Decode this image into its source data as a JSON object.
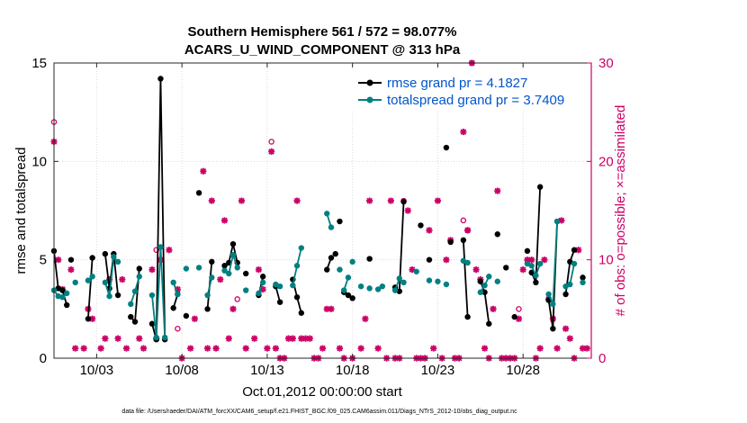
{
  "chart_data": {
    "type": "line",
    "title": "Southern Hemisphere 561 / 572 = 98.077%",
    "subtitle": "ACARS_U_WIND_COMPONENT @ 313 hPa",
    "xlabel": "Oct.01,2012 00:00:00 start",
    "ylabel_left": "rmse and totalspread",
    "ylabel_right": "# of obs: o=possible; ×=assimilated",
    "footer": "data file: /Users/raeder/DAI/ATM_forcXX/CAM6_setup/f.e21.FHIST_BGC.f09_025.CAM6assim.011/Diags_NTrS_2012-10/obs_diag_output.nc",
    "xlim": [
      0.5,
      32
    ],
    "ylim_left": [
      0,
      15
    ],
    "ylim_right": [
      0,
      30
    ],
    "x_ticks": [
      3,
      8,
      13,
      18,
      23,
      28
    ],
    "x_tick_labels": [
      "10/03",
      "10/08",
      "10/13",
      "10/18",
      "10/23",
      "10/28"
    ],
    "y_left_ticks": [
      0,
      5,
      10,
      15
    ],
    "y_right_ticks": [
      0,
      10,
      20,
      30
    ],
    "grid": true,
    "legend_position": "top-right",
    "colors": {
      "rmse": "#000000",
      "spread": "#008080",
      "obs": "#cc0066"
    },
    "series": [
      {
        "name": "rmse grand pr = 4.1827",
        "axis": "left",
        "segments": [
          [
            [
              0.5,
              5.45
            ],
            [
              0.75,
              3.55
            ],
            [
              1.0,
              3.45
            ],
            [
              1.25,
              2.7
            ]
          ],
          [
            [
              2.5,
              2.0
            ],
            [
              2.75,
              5.1
            ]
          ],
          [
            [
              3.5,
              5.3
            ],
            [
              3.75,
              3.55
            ],
            [
              4.0,
              5.3
            ],
            [
              4.25,
              3.2
            ]
          ],
          [
            [
              5.0,
              2.1
            ],
            [
              5.25,
              1.85
            ],
            [
              5.5,
              4.55
            ]
          ],
          [
            [
              6.25,
              1.75
            ],
            [
              6.5,
              0.95
            ],
            [
              6.75,
              14.2
            ],
            [
              7.0,
              0.95
            ]
          ],
          [
            [
              7.5,
              2.55
            ],
            [
              7.75,
              3.25
            ]
          ],
          [
            [
              9.5,
              2.5
            ],
            [
              9.75,
              4.9
            ]
          ],
          [
            [
              10.5,
              4.7
            ],
            [
              10.75,
              4.85
            ],
            [
              11.0,
              5.8
            ],
            [
              11.25,
              4.85
            ]
          ],
          [
            [
              12.5,
              3.2
            ],
            [
              12.75,
              4.15
            ]
          ],
          [
            [
              13.5,
              3.65
            ],
            [
              13.75,
              2.85
            ]
          ],
          [
            [
              14.5,
              4.0
            ],
            [
              14.75,
              3.1
            ],
            [
              15.0,
              2.3
            ]
          ],
          [
            [
              16.5,
              4.5
            ],
            [
              16.75,
              5.1
            ]
          ],
          [
            [
              17.5,
              3.35
            ],
            [
              17.75,
              3.2
            ]
          ],
          [
            [
              20.5,
              3.6
            ],
            [
              20.75,
              3.4
            ],
            [
              21.0,
              7.95
            ]
          ],
          [
            [
              24.5,
              6.0
            ],
            [
              24.75,
              2.1
            ]
          ],
          [
            [
              25.5,
              3.9
            ],
            [
              25.75,
              3.35
            ],
            [
              26.0,
              1.75
            ]
          ],
          [
            [
              28.5,
              4.35
            ],
            [
              28.75,
              3.85
            ],
            [
              29.0,
              8.7
            ]
          ],
          [
            [
              29.5,
              2.95
            ],
            [
              29.75,
              1.5
            ],
            [
              30.0,
              6.95
            ]
          ],
          [
            [
              30.5,
              3.25
            ],
            [
              30.75,
              4.9
            ],
            [
              31.0,
              5.5
            ]
          ],
          [
            [
              31.5,
              4.1
            ]
          ]
        ],
        "isolated": [
          [
            1.5,
            5.0
          ],
          [
            8.25,
            2.15
          ],
          [
            9.0,
            8.4
          ],
          [
            11.75,
            4.3
          ],
          [
            17.0,
            5.3
          ],
          [
            17.25,
            6.95
          ],
          [
            18.0,
            3.05
          ],
          [
            19.0,
            5.05
          ],
          [
            22.0,
            6.75
          ],
          [
            22.5,
            5.0
          ],
          [
            23.5,
            10.7
          ],
          [
            23.75,
            5.9
          ],
          [
            26.5,
            6.3
          ],
          [
            27.0,
            4.6
          ],
          [
            27.5,
            2.1
          ],
          [
            28.25,
            5.45
          ]
        ]
      },
      {
        "name": "totalspread grand pr = 3.7409",
        "axis": "left",
        "segments": [
          [
            [
              0.5,
              3.45
            ],
            [
              0.75,
              3.15
            ],
            [
              1.0,
              3.1
            ],
            [
              1.25,
              3.3
            ]
          ],
          [
            [
              2.5,
              3.95
            ],
            [
              2.75,
              4.15
            ]
          ],
          [
            [
              3.5,
              3.85
            ],
            [
              3.75,
              3.15
            ],
            [
              4.0,
              5.15
            ],
            [
              4.25,
              4.9
            ]
          ],
          [
            [
              5.0,
              2.75
            ],
            [
              5.25,
              3.4
            ],
            [
              5.5,
              4.15
            ]
          ],
          [
            [
              6.25,
              3.2
            ],
            [
              6.5,
              1.05
            ],
            [
              6.75,
              5.65
            ],
            [
              7.0,
              1.05
            ]
          ],
          [
            [
              7.5,
              3.85
            ],
            [
              7.75,
              3.25
            ]
          ],
          [
            [
              9.5,
              3.2
            ],
            [
              9.75,
              4.1
            ]
          ],
          [
            [
              10.5,
              4.45
            ],
            [
              10.75,
              4.3
            ],
            [
              11.0,
              5.25
            ],
            [
              11.25,
              4.6
            ]
          ],
          [
            [
              12.5,
              3.3
            ],
            [
              12.75,
              3.85
            ]
          ],
          [
            [
              13.5,
              3.75
            ],
            [
              13.75,
              3.65
            ]
          ],
          [
            [
              14.5,
              3.7
            ],
            [
              14.75,
              4.7
            ],
            [
              15.0,
              5.6
            ]
          ],
          [
            [
              16.5,
              7.35
            ],
            [
              16.75,
              6.65
            ]
          ],
          [
            [
              17.5,
              3.45
            ],
            [
              17.75,
              4.1
            ]
          ],
          [
            [
              20.5,
              3.45
            ],
            [
              20.75,
              4.05
            ],
            [
              21.0,
              3.85
            ]
          ],
          [
            [
              24.5,
              4.95
            ],
            [
              24.75,
              4.85
            ]
          ],
          [
            [
              25.5,
              3.35
            ],
            [
              25.75,
              3.7
            ],
            [
              26.0,
              4.15
            ]
          ],
          [
            [
              28.5,
              4.7
            ],
            [
              28.75,
              4.2
            ],
            [
              29.0,
              4.8
            ]
          ],
          [
            [
              29.5,
              3.25
            ],
            [
              29.75,
              2.75
            ],
            [
              30.0,
              6.95
            ]
          ],
          [
            [
              30.5,
              3.65
            ],
            [
              30.75,
              3.75
            ],
            [
              31.0,
              4.8
            ]
          ],
          [
            [
              31.5,
              3.85
            ]
          ]
        ],
        "isolated": [
          [
            1.75,
            3.85
          ],
          [
            8.25,
            4.55
          ],
          [
            9.0,
            4.6
          ],
          [
            11.75,
            3.45
          ],
          [
            17.25,
            4.5
          ],
          [
            18.0,
            4.9
          ],
          [
            18.5,
            3.65
          ],
          [
            19.0,
            3.55
          ],
          [
            19.5,
            3.5
          ],
          [
            19.75,
            3.65
          ],
          [
            21.75,
            4.4
          ],
          [
            22.5,
            3.95
          ],
          [
            23.0,
            3.9
          ],
          [
            23.5,
            3.75
          ],
          [
            26.5,
            3.9
          ],
          [
            28.25,
            4.8
          ]
        ]
      }
    ],
    "obs_assimilated": [
      [
        0.5,
        22
      ],
      [
        0.75,
        10
      ],
      [
        1.0,
        7
      ],
      [
        1.5,
        9
      ],
      [
        1.75,
        1
      ],
      [
        2.25,
        1
      ],
      [
        2.5,
        5
      ],
      [
        2.75,
        4
      ],
      [
        3.25,
        1
      ],
      [
        3.5,
        2
      ],
      [
        3.75,
        8
      ],
      [
        4.25,
        2
      ],
      [
        4.5,
        8
      ],
      [
        4.75,
        1
      ],
      [
        5.5,
        2
      ],
      [
        5.75,
        1
      ],
      [
        6.25,
        9
      ],
      [
        6.5,
        2
      ],
      [
        6.75,
        10
      ],
      [
        7.25,
        11
      ],
      [
        7.75,
        7
      ],
      [
        8.0,
        0
      ],
      [
        8.5,
        1
      ],
      [
        8.75,
        4
      ],
      [
        9.25,
        19
      ],
      [
        9.5,
        1
      ],
      [
        9.75,
        16
      ],
      [
        10.0,
        1
      ],
      [
        10.25,
        8
      ],
      [
        10.5,
        14
      ],
      [
        10.75,
        2
      ],
      [
        11.0,
        5
      ],
      [
        11.5,
        16
      ],
      [
        11.75,
        1
      ],
      [
        12.25,
        2
      ],
      [
        12.5,
        9
      ],
      [
        12.75,
        7
      ],
      [
        13.0,
        1
      ],
      [
        13.25,
        21
      ],
      [
        13.5,
        1
      ],
      [
        13.75,
        0
      ],
      [
        14.0,
        0
      ],
      [
        14.25,
        2
      ],
      [
        14.5,
        2
      ],
      [
        14.75,
        16
      ],
      [
        15.0,
        2
      ],
      [
        15.25,
        2
      ],
      [
        15.5,
        2
      ],
      [
        15.75,
        0
      ],
      [
        16.0,
        0
      ],
      [
        16.25,
        1
      ],
      [
        16.5,
        5
      ],
      [
        16.75,
        5
      ],
      [
        17.25,
        1
      ],
      [
        17.5,
        0
      ],
      [
        18.0,
        0
      ],
      [
        18.5,
        1
      ],
      [
        18.75,
        4
      ],
      [
        19.0,
        16
      ],
      [
        19.5,
        1
      ],
      [
        20.0,
        0
      ],
      [
        20.25,
        16
      ],
      [
        20.5,
        0
      ],
      [
        20.75,
        0
      ],
      [
        21.25,
        15
      ],
      [
        21.5,
        9
      ],
      [
        21.75,
        0
      ],
      [
        22.0,
        0
      ],
      [
        22.25,
        0
      ],
      [
        22.5,
        13
      ],
      [
        22.75,
        1
      ],
      [
        23.0,
        16
      ],
      [
        23.25,
        0
      ],
      [
        23.5,
        10
      ],
      [
        23.75,
        12
      ],
      [
        24.0,
        0
      ],
      [
        24.25,
        0
      ],
      [
        24.5,
        23
      ],
      [
        24.75,
        13
      ],
      [
        25.0,
        30
      ],
      [
        25.25,
        9
      ],
      [
        25.5,
        8
      ],
      [
        25.75,
        1
      ],
      [
        26.0,
        0
      ],
      [
        26.25,
        5
      ],
      [
        26.5,
        17
      ],
      [
        26.75,
        0
      ],
      [
        27.0,
        0
      ],
      [
        27.25,
        0
      ],
      [
        27.5,
        0
      ],
      [
        27.75,
        4
      ],
      [
        28.0,
        9
      ],
      [
        28.25,
        10
      ],
      [
        28.5,
        10
      ],
      [
        28.75,
        0
      ],
      [
        29.0,
        1
      ],
      [
        29.25,
        10
      ],
      [
        29.5,
        6
      ],
      [
        29.75,
        4
      ],
      [
        30.0,
        1
      ],
      [
        30.25,
        14
      ],
      [
        30.5,
        3
      ],
      [
        30.75,
        2
      ],
      [
        31.0,
        0
      ],
      [
        31.25,
        11
      ],
      [
        31.5,
        1
      ],
      [
        31.75,
        1
      ]
    ],
    "obs_possible": [
      [
        0.5,
        24
      ],
      [
        6.5,
        11
      ],
      [
        7.75,
        3
      ],
      [
        11.25,
        6
      ],
      [
        13.25,
        22
      ],
      [
        21.0,
        16
      ],
      [
        24.5,
        14
      ],
      [
        24.75,
        13
      ],
      [
        25.0,
        30
      ],
      [
        27.75,
        5
      ]
    ]
  }
}
